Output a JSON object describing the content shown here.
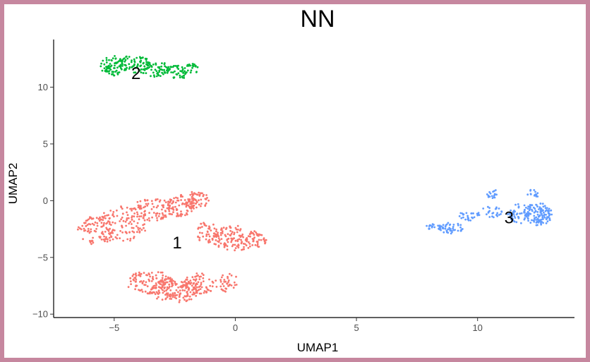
{
  "chart_data": {
    "type": "scatter",
    "title": "NN",
    "xlabel": "UMAP1",
    "ylabel": "UMAP2",
    "xlim": [
      -7.5,
      14
    ],
    "ylim": [
      -10.3,
      14.2
    ],
    "xticks": [
      -5,
      0,
      5,
      10
    ],
    "yticks": [
      -10,
      -5,
      0,
      5,
      10
    ],
    "grid": false,
    "legend": "none",
    "clusters": [
      {
        "name": "1",
        "color": "#f8766d",
        "label_pos": [
          -2.4,
          -3.7
        ],
        "blobs": [
          {
            "cx": -5.7,
            "cy": -2.6,
            "rx": 0.8,
            "ry": 1.3,
            "n": 90
          },
          {
            "cx": -4.6,
            "cy": -2.0,
            "rx": 1.0,
            "ry": 1.6,
            "n": 110
          },
          {
            "cx": -3.4,
            "cy": -0.8,
            "rx": 0.9,
            "ry": 1.0,
            "n": 90
          },
          {
            "cx": -2.3,
            "cy": -0.5,
            "rx": 0.6,
            "ry": 0.9,
            "n": 60
          },
          {
            "cx": -1.7,
            "cy": 0.0,
            "rx": 0.7,
            "ry": 0.8,
            "n": 70
          },
          {
            "cx": -1.2,
            "cy": -2.8,
            "rx": 0.5,
            "ry": 0.9,
            "n": 45
          },
          {
            "cx": 0.0,
            "cy": -3.3,
            "rx": 1.0,
            "ry": 1.1,
            "n": 130
          },
          {
            "cx": 0.9,
            "cy": -3.5,
            "rx": 0.4,
            "ry": 0.6,
            "n": 30
          },
          {
            "cx": -3.5,
            "cy": -7.2,
            "rx": 1.0,
            "ry": 1.0,
            "n": 110
          },
          {
            "cx": -2.5,
            "cy": -7.9,
            "rx": 1.0,
            "ry": 1.1,
            "n": 150
          },
          {
            "cx": -1.5,
            "cy": -7.3,
            "rx": 0.8,
            "ry": 0.9,
            "n": 70
          },
          {
            "cx": -0.3,
            "cy": -7.2,
            "rx": 0.4,
            "ry": 0.9,
            "n": 35
          }
        ]
      },
      {
        "name": "2",
        "color": "#00ba38",
        "label_pos": [
          -4.1,
          11.2
        ],
        "blobs": [
          {
            "cx": -5.1,
            "cy": 11.9,
            "rx": 0.5,
            "ry": 0.9,
            "n": 75
          },
          {
            "cx": -4.2,
            "cy": 12.0,
            "rx": 0.7,
            "ry": 0.8,
            "n": 75
          },
          {
            "cx": -3.3,
            "cy": 11.6,
            "rx": 0.6,
            "ry": 0.7,
            "n": 55
          },
          {
            "cx": -2.4,
            "cy": 11.3,
            "rx": 0.5,
            "ry": 0.6,
            "n": 40
          },
          {
            "cx": -1.9,
            "cy": 11.6,
            "rx": 0.4,
            "ry": 0.5,
            "n": 25
          }
        ]
      },
      {
        "name": "3",
        "color": "#619cff",
        "label_pos": [
          11.3,
          -1.5
        ],
        "blobs": [
          {
            "cx": 8.2,
            "cy": -2.3,
            "rx": 0.35,
            "ry": 0.25,
            "n": 18
          },
          {
            "cx": 8.9,
            "cy": -2.4,
            "rx": 0.5,
            "ry": 0.5,
            "n": 45
          },
          {
            "cx": 9.6,
            "cy": -1.4,
            "rx": 0.5,
            "ry": 0.4,
            "n": 25
          },
          {
            "cx": 10.5,
            "cy": -1.0,
            "rx": 0.5,
            "ry": 0.5,
            "n": 25
          },
          {
            "cx": 10.6,
            "cy": 0.6,
            "rx": 0.25,
            "ry": 0.4,
            "n": 18
          },
          {
            "cx": 11.7,
            "cy": -1.2,
            "rx": 0.5,
            "ry": 0.9,
            "n": 50
          },
          {
            "cx": 12.5,
            "cy": -1.2,
            "rx": 0.6,
            "ry": 1.0,
            "n": 120
          },
          {
            "cx": 12.3,
            "cy": 0.6,
            "rx": 0.25,
            "ry": 0.4,
            "n": 15
          }
        ]
      }
    ]
  }
}
